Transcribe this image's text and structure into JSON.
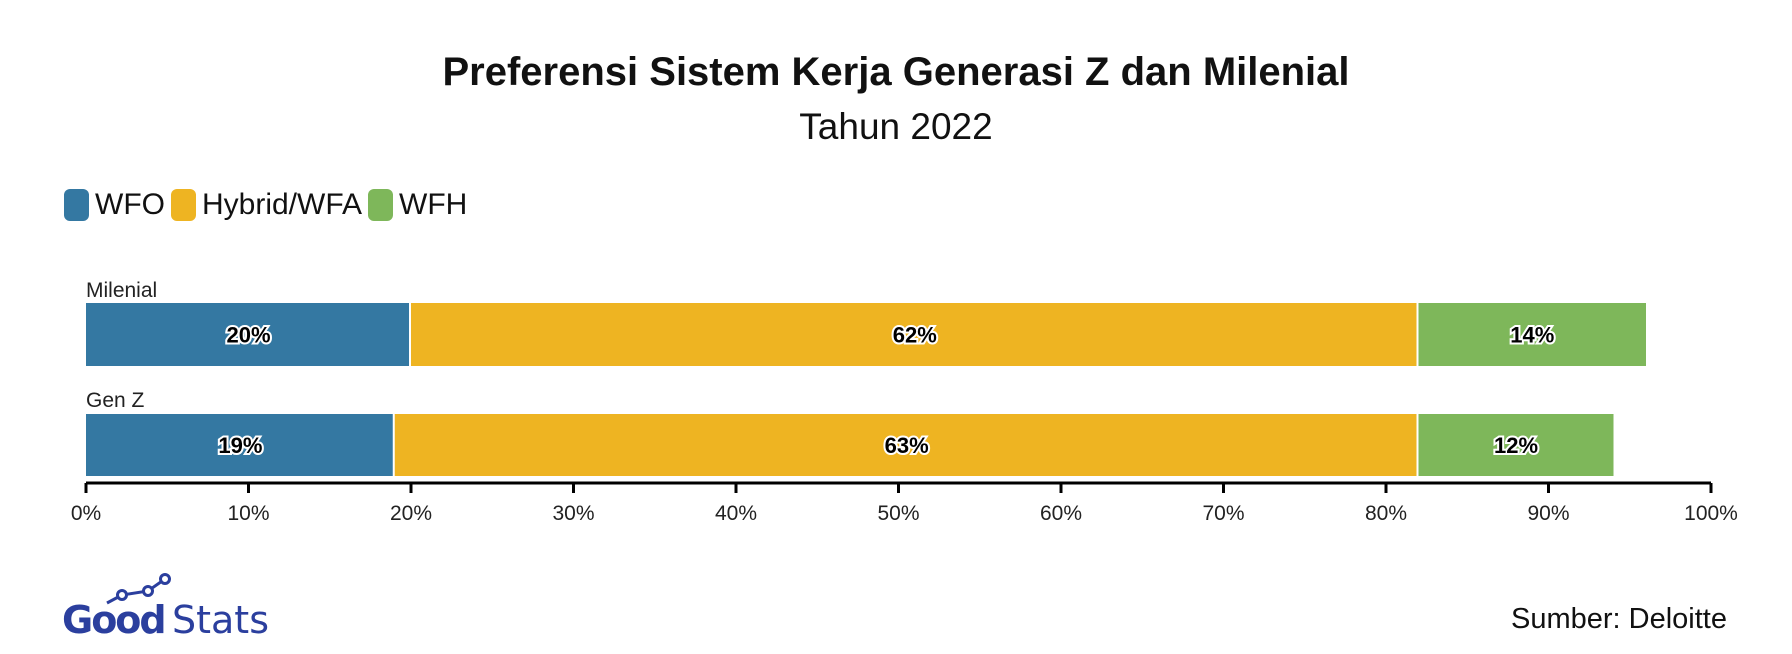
{
  "chart_data": {
    "type": "bar",
    "orientation": "horizontal",
    "stacked": true,
    "title": "Preferensi Sistem Kerja Generasi Z dan Milenial",
    "subtitle": "Tahun 2022",
    "categories": [
      "Milenial",
      "Gen Z"
    ],
    "series": [
      {
        "name": "WFO",
        "color": "#3478a2",
        "values": [
          20,
          19
        ]
      },
      {
        "name": "Hybrid/WFA",
        "color": "#eeb422",
        "values": [
          62,
          63
        ]
      },
      {
        "name": "WFH",
        "color": "#7eb75a",
        "values": [
          14,
          12
        ]
      }
    ],
    "xlim": [
      0,
      100
    ],
    "xticks": [
      "0%",
      "10%",
      "20%",
      "30%",
      "40%",
      "50%",
      "60%",
      "70%",
      "80%",
      "90%",
      "100%"
    ],
    "grid": false,
    "legend_placement": "top-left",
    "source": "Sumber: Deloitte"
  },
  "logo": {
    "text": "GoodStats",
    "color": "#2b3f9e"
  }
}
